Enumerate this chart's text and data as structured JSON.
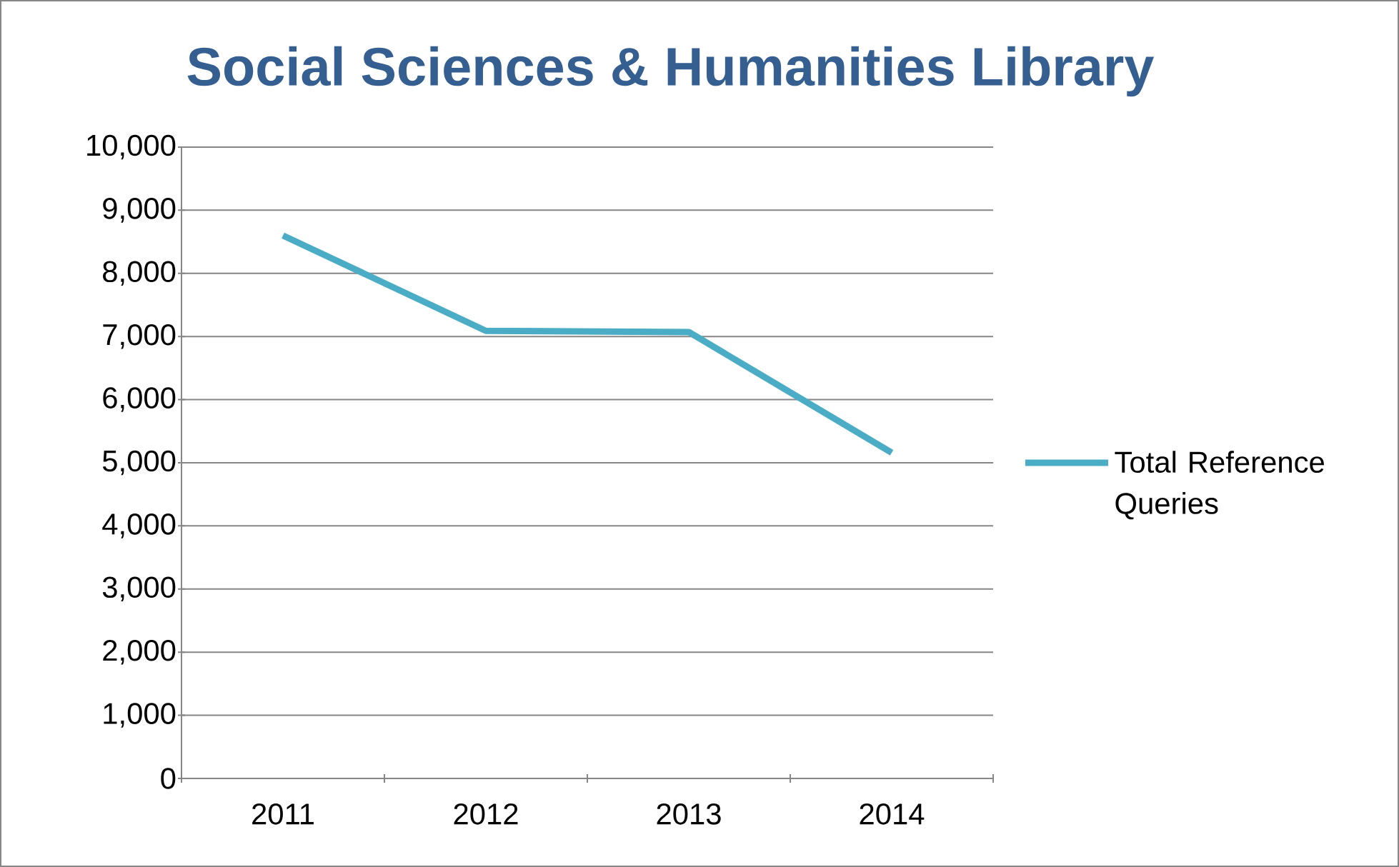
{
  "chart_data": {
    "type": "line",
    "title": "Social Sciences & Humanities Library",
    "categories": [
      "2011",
      "2012",
      "2013",
      "2014"
    ],
    "series": [
      {
        "name": "Total Reference Queries",
        "color": "#4bacc6",
        "values": [
          8600,
          7090,
          7070,
          5160
        ]
      }
    ],
    "ylim": [
      0,
      10000
    ],
    "yticks": [
      {
        "value": 0,
        "label": "0"
      },
      {
        "value": 1000,
        "label": "1,000"
      },
      {
        "value": 2000,
        "label": "2,000"
      },
      {
        "value": 3000,
        "label": "3,000"
      },
      {
        "value": 4000,
        "label": "4,000"
      },
      {
        "value": 5000,
        "label": "5,000"
      },
      {
        "value": 6000,
        "label": "6,000"
      },
      {
        "value": 7000,
        "label": "7,000"
      },
      {
        "value": 8000,
        "label": "8,000"
      },
      {
        "value": 9000,
        "label": "9,000"
      },
      {
        "value": 10000,
        "label": "10,000"
      }
    ],
    "grid": "y",
    "legend": "right",
    "marker": "none",
    "line_style": "solid"
  }
}
